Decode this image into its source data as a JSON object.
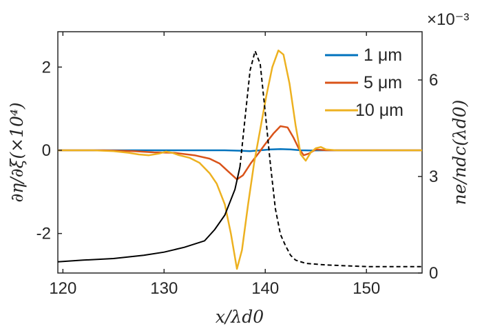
{
  "chart_data": {
    "type": "line",
    "xlabel": "x/λd0",
    "ylabel_left": "∂η/∂ξ(×10⁴)",
    "ylabel_right": "ne/ndc(λd0)",
    "right_axis_multiplier": "×10⁻³",
    "xlim": [
      119.5,
      155.5
    ],
    "ylim_left": [
      -2.95,
      2.85
    ],
    "ylim_right": [
      0,
      7.5
    ],
    "xticks": [
      "120",
      "130",
      "140",
      "150"
    ],
    "yticks_left": [
      "2",
      "0",
      "-2"
    ],
    "yticks_right": [
      "6",
      "3",
      "0"
    ],
    "legend_position": "top-right",
    "grid": false,
    "series": [
      {
        "name": "1 μm",
        "color": "#0072BD",
        "axis": "left",
        "points": [
          [
            119.5,
            0
          ],
          [
            130,
            0
          ],
          [
            136,
            0.0
          ],
          [
            137.5,
            -0.01
          ],
          [
            138.5,
            -0.02
          ],
          [
            139.5,
            0.0
          ],
          [
            140.5,
            0.02
          ],
          [
            141.5,
            0.03
          ],
          [
            142.5,
            0.02
          ],
          [
            143.5,
            0.0
          ],
          [
            144.5,
            -0.005
          ],
          [
            146,
            0
          ],
          [
            155.5,
            0
          ]
        ]
      },
      {
        "name": "5 μm",
        "color": "#D95319",
        "axis": "left",
        "points": [
          [
            119.5,
            0
          ],
          [
            124,
            0
          ],
          [
            127,
            -0.02
          ],
          [
            129,
            -0.05
          ],
          [
            131,
            -0.06
          ],
          [
            133,
            -0.12
          ],
          [
            134.5,
            -0.2
          ],
          [
            135.5,
            -0.32
          ],
          [
            136.3,
            -0.5
          ],
          [
            137.2,
            -0.7
          ],
          [
            137.8,
            -0.6
          ],
          [
            138.6,
            -0.3
          ],
          [
            139.4,
            -0.05
          ],
          [
            140,
            0.15
          ],
          [
            140.8,
            0.4
          ],
          [
            141.5,
            0.58
          ],
          [
            142.2,
            0.55
          ],
          [
            142.8,
            0.3
          ],
          [
            143.3,
            0.05
          ],
          [
            143.8,
            -0.12
          ],
          [
            144.3,
            -0.08
          ],
          [
            145,
            0.02
          ],
          [
            146,
            0
          ],
          [
            155.5,
            0
          ]
        ]
      },
      {
        "name": "10 μm",
        "color": "#EDB120",
        "axis": "left",
        "points": [
          [
            119.5,
            0
          ],
          [
            123,
            0
          ],
          [
            125,
            -0.02
          ],
          [
            126.5,
            -0.06
          ],
          [
            127.5,
            -0.1
          ],
          [
            128.5,
            -0.12
          ],
          [
            129.5,
            -0.08
          ],
          [
            130.2,
            -0.03
          ],
          [
            130.8,
            -0.06
          ],
          [
            131.5,
            -0.12
          ],
          [
            132.5,
            -0.18
          ],
          [
            133.5,
            -0.3
          ],
          [
            134.5,
            -0.55
          ],
          [
            135.2,
            -0.8
          ],
          [
            136,
            -1.3
          ],
          [
            136.6,
            -2.0
          ],
          [
            137.2,
            -2.85
          ],
          [
            137.7,
            -2.4
          ],
          [
            138.3,
            -1.3
          ],
          [
            138.9,
            -0.3
          ],
          [
            139.5,
            0.5
          ],
          [
            140.1,
            1.3
          ],
          [
            140.7,
            2.0
          ],
          [
            141.3,
            2.4
          ],
          [
            141.8,
            2.3
          ],
          [
            142.4,
            1.6
          ],
          [
            143,
            0.6
          ],
          [
            143.5,
            -0.1
          ],
          [
            144,
            -0.25
          ],
          [
            144.5,
            -0.05
          ],
          [
            145,
            0.05
          ],
          [
            145.5,
            0.08
          ],
          [
            146,
            0.02
          ],
          [
            147,
            0
          ],
          [
            155.5,
            0
          ]
        ]
      },
      {
        "name": "",
        "color": "#000000",
        "axis": "right",
        "style": "solid-then-dashed",
        "points": [
          [
            119.5,
            0.35
          ],
          [
            122,
            0.4
          ],
          [
            125,
            0.45
          ],
          [
            128,
            0.55
          ],
          [
            130,
            0.65
          ],
          [
            132,
            0.8
          ],
          [
            134,
            1.0
          ],
          [
            135,
            1.35
          ],
          [
            136,
            1.8
          ],
          [
            137,
            2.6
          ],
          [
            137.5,
            3.3
          ],
          [
            138,
            4.8
          ],
          [
            138.5,
            6.3
          ],
          [
            139,
            6.9
          ],
          [
            139.5,
            6.5
          ],
          [
            140,
            5.0
          ],
          [
            140.5,
            3.4
          ],
          [
            141,
            2.0
          ],
          [
            141.5,
            1.2
          ],
          [
            142,
            0.85
          ],
          [
            142.5,
            0.55
          ],
          [
            143,
            0.4
          ],
          [
            144,
            0.3
          ],
          [
            146,
            0.25
          ],
          [
            150,
            0.2
          ],
          [
            155.5,
            0.2
          ]
        ]
      }
    ]
  }
}
